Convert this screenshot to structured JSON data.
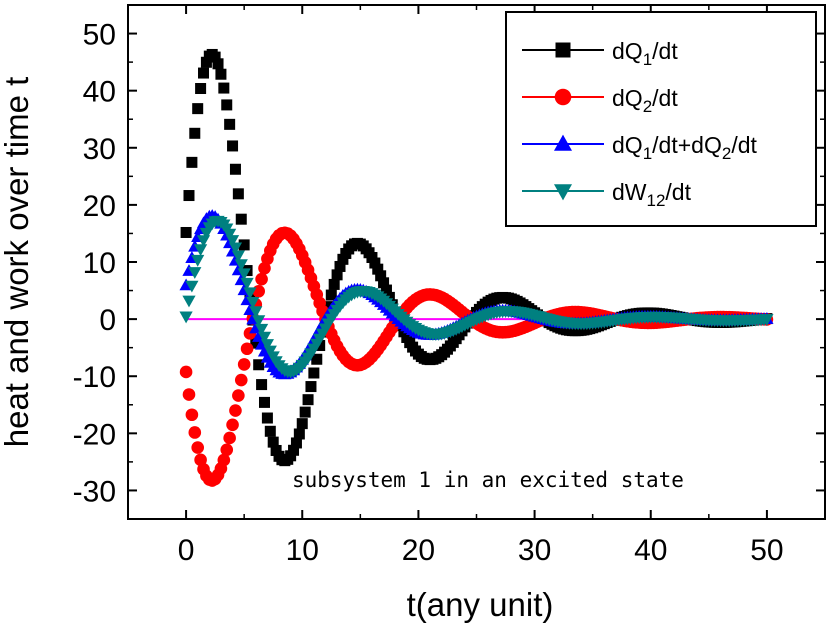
{
  "chart_data": {
    "type": "scatter",
    "xlabel": "t(any unit)",
    "ylabel": "heat and work over time t",
    "xlim": [
      -5,
      55
    ],
    "ylim": [
      -35,
      55
    ],
    "xticks": [
      0,
      10,
      20,
      30,
      40,
      50
    ],
    "yticks": [
      -30,
      -20,
      -10,
      0,
      10,
      20,
      30,
      40,
      50
    ],
    "legend_position": "top-right",
    "annotation": "subsystem 1 in an excited state",
    "zero_line": {
      "y": 0,
      "x_range": [
        0,
        50
      ],
      "color": "#ff00ff"
    },
    "series": [
      {
        "legend_parts": [
          [
            "dQ",
            ""
          ],
          [
            "1",
            "sub"
          ],
          [
            "/dt",
            ""
          ]
        ],
        "color": "#000000",
        "marker": "square",
        "model": {
          "A": 59,
          "decay": 0.1,
          "omega": 0.502,
          "phase": 0.26,
          "offset": 0
        }
      },
      {
        "legend_parts": [
          [
            "dQ",
            ""
          ],
          [
            "2",
            "sub"
          ],
          [
            "/dt",
            ""
          ]
        ],
        "color": "#ff0000",
        "marker": "circle",
        "model": {
          "A": -36,
          "decay": 0.1,
          "omega": 0.502,
          "phase": 0.26,
          "offset": 0
        }
      },
      {
        "legend_parts": [
          [
            "dQ",
            ""
          ],
          [
            "1",
            "sub"
          ],
          [
            "/dt+dQ",
            ""
          ],
          [
            "2",
            "sub"
          ],
          [
            "/dt",
            ""
          ]
        ],
        "color": "#0000ff",
        "marker": "triangle-up",
        "model": {
          "A": 23,
          "decay": 0.1,
          "omega": 0.502,
          "phase": 0.26,
          "offset": 0
        }
      },
      {
        "legend_parts": [
          [
            "dW",
            ""
          ],
          [
            "12",
            "sub"
          ],
          [
            "/dt",
            ""
          ]
        ],
        "color": "#008080",
        "marker": "triangle-down",
        "model": {
          "A": 23,
          "decay": 0.1,
          "omega": 0.502,
          "phase": 0.02,
          "offset": 0
        }
      }
    ],
    "x_sampling": {
      "start": 0,
      "end": 50,
      "step": 0.25
    }
  }
}
